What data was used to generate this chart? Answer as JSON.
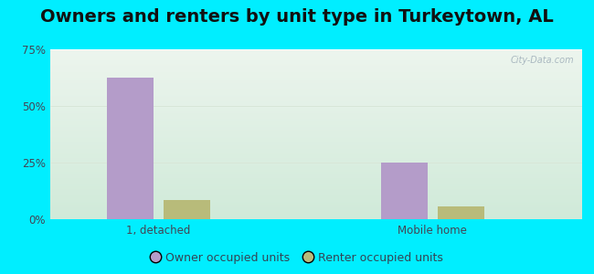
{
  "title": "Owners and renters by unit type in Turkeytown, AL",
  "categories": [
    "1, detached",
    "Mobile home"
  ],
  "owner_values": [
    62.5,
    25.0
  ],
  "renter_values": [
    8.5,
    5.5
  ],
  "owner_color": "#b49cc9",
  "renter_color": "#b8bb7a",
  "ylim": [
    0,
    75
  ],
  "yticks": [
    0,
    25,
    50,
    75
  ],
  "ytick_labels": [
    "0%",
    "25%",
    "50%",
    "75%"
  ],
  "bar_width": 0.28,
  "legend_owner": "Owner occupied units",
  "legend_renter": "Renter occupied units",
  "bg_outer": "#00eeff",
  "bg_inner_top": "#eaf5ee",
  "bg_inner_bottom": "#d0eada",
  "watermark": "City-Data.com",
  "title_fontsize": 14,
  "axis_fontsize": 8.5,
  "legend_fontsize": 9,
  "grid_color": "#c8ddc8"
}
